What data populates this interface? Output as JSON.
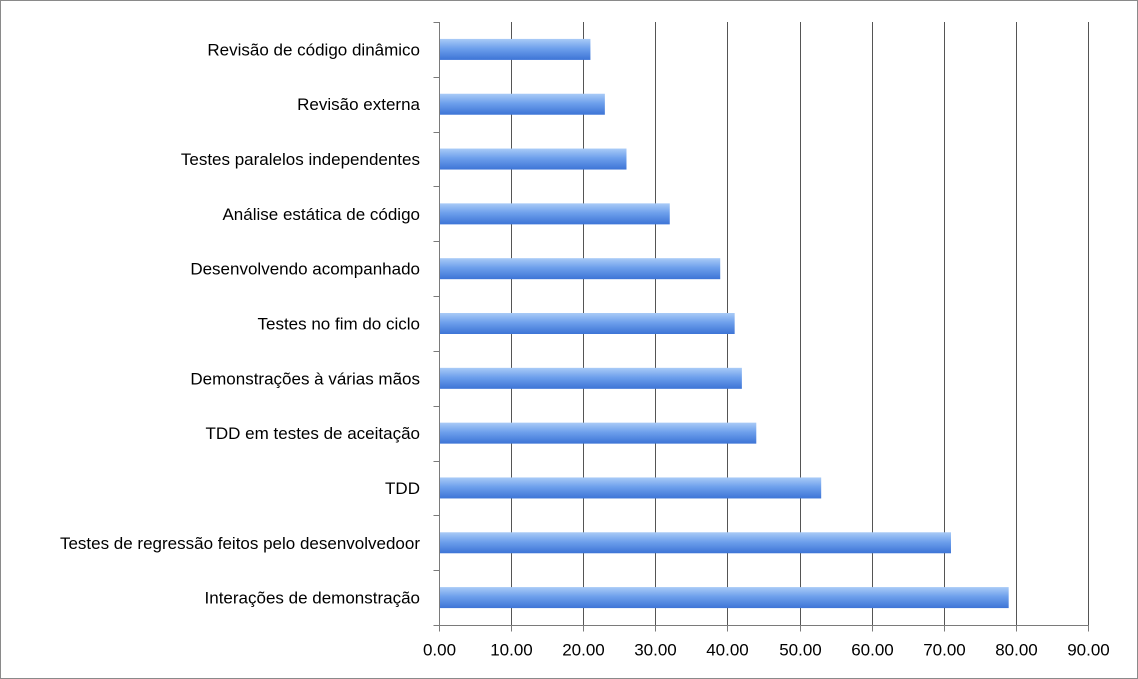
{
  "colors": {
    "bar_light": "#a9cbf7",
    "bar_mid": "#6ea0ec",
    "bar_dark": "#3d74d6",
    "gridline": "#555555",
    "axis": "#7a7a7a"
  },
  "chart_data": {
    "type": "bar",
    "orientation": "horizontal",
    "categories": [
      "Revisão de código dinâmico",
      "Revisão externa",
      "Testes paralelos independentes",
      "Análise estática de código",
      "Desenvolvendo acompanhado",
      "Testes no fim do ciclo",
      "Demonstrações à várias mãos",
      "TDD em testes de aceitação",
      "TDD",
      "Testes de regressão feitos pelo desenvolvedoor",
      "Interações de demonstração"
    ],
    "values": [
      21,
      23,
      26,
      32,
      39,
      41,
      42,
      44,
      53,
      71,
      79
    ],
    "xlim": [
      0,
      90
    ],
    "xticks": [
      "0.00",
      "10.00",
      "20.00",
      "30.00",
      "40.00",
      "50.00",
      "60.00",
      "70.00",
      "80.00",
      "90.00"
    ],
    "xtick_values": [
      0,
      10,
      20,
      30,
      40,
      50,
      60,
      70,
      80,
      90
    ],
    "grid": "vertical-major",
    "legend": "none"
  }
}
